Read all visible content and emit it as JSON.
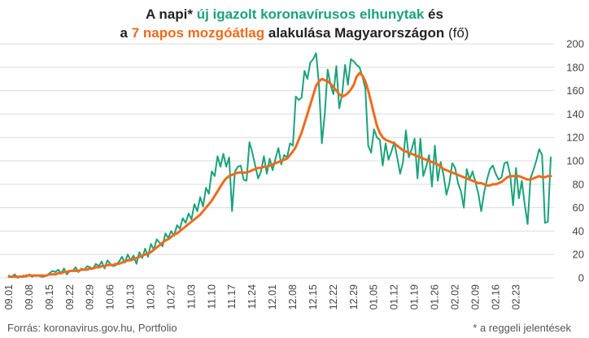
{
  "title": {
    "line1_prefix": "A napi* ",
    "line1_green": "új igazolt koronavírusos elhunytak",
    "line1_suffix": " és",
    "line2_prefix": "a ",
    "line2_orange": "7 napos mozgóátlag",
    "line2_suffix": " alakulása Magyarországon",
    "line2_unit": " (fő)"
  },
  "footer": {
    "source": "Forrás: koronavirus.gov.hu, Portfolio",
    "note": "* a reggeli jelentések"
  },
  "colors": {
    "daily": "#1aa37a",
    "average": "#f26a1b",
    "grid": "#dcdcdc"
  },
  "chart_data": {
    "type": "line",
    "x_start": "2020-09-01",
    "x_end": "2021-02-23",
    "x_tick_labels": [
      "09.01",
      "09.08",
      "09.15",
      "09.22",
      "09.29",
      "10.06",
      "10.13",
      "10.20",
      "10.27",
      "11.03",
      "11.10",
      "11.17",
      "11.24",
      "12.01",
      "12.08",
      "12.15",
      "12.22",
      "12.29",
      "01.05",
      "01.12",
      "01.19",
      "01.26",
      "02.02",
      "02.09",
      "02.16",
      "02.23"
    ],
    "y_ticks": [
      0,
      20,
      40,
      60,
      80,
      100,
      120,
      140,
      160,
      180,
      200
    ],
    "ylim": [
      0,
      200
    ],
    "grid": "horizontal",
    "series": [
      {
        "name": "új igazolt koronavírusos elhunytak",
        "color": "#1aa37a",
        "values": [
          2,
          1,
          3,
          0,
          1,
          2,
          1,
          3,
          1,
          2,
          2,
          1,
          1,
          2,
          4,
          6,
          5,
          7,
          4,
          8,
          3,
          6,
          6,
          9,
          5,
          8,
          7,
          10,
          9,
          8,
          12,
          10,
          14,
          8,
          15,
          12,
          10,
          11,
          14,
          18,
          13,
          20,
          15,
          19,
          12,
          22,
          17,
          25,
          18,
          29,
          24,
          33,
          30,
          27,
          38,
          34,
          40,
          36,
          45,
          42,
          51,
          47,
          55,
          50,
          63,
          57,
          69,
          61,
          77,
          72,
          91,
          87,
          104,
          95,
          106,
          95,
          103,
          57,
          91,
          95,
          96,
          84,
          83,
          116,
          107,
          96,
          85,
          91,
          104,
          89,
          102,
          92,
          102,
          111,
          97,
          105,
          103,
          115,
          113,
          155,
          152,
          154,
          177,
          170,
          184,
          187,
          192,
          165,
          115,
          140,
          178,
          165,
          157,
          181,
          145,
          157,
          182,
          165,
          187,
          185,
          182,
          180,
          172,
          162,
          113,
          107,
          127,
          120,
          118,
          96,
          115,
          101,
          108,
          116,
          103,
          89,
          99,
          126,
          103,
          110,
          119,
          85,
          119,
          87,
          95,
          105,
          78,
          113,
          83,
          99,
          88,
          71,
          81,
          98,
          94,
          81,
          74,
          60,
          93,
          84,
          91,
          82,
          72,
          57,
          73,
          84,
          93,
          96,
          89,
          84,
          86,
          98,
          99,
          88,
          62,
          94,
          68,
          83,
          63,
          46,
          85,
          92,
          100,
          110,
          105,
          47,
          48,
          103
        ],
        "x_index_note": "values are one per day starting at x_start (09.01)"
      },
      {
        "name": "7 napos mozgóátlag",
        "color": "#f26a1b",
        "values": [
          1,
          1,
          1,
          1,
          1,
          1,
          2,
          2,
          2,
          2,
          2,
          2,
          2,
          2,
          3,
          3,
          3,
          4,
          4,
          5,
          5,
          6,
          6,
          6,
          6,
          7,
          7,
          7,
          8,
          8,
          9,
          9,
          10,
          10,
          11,
          11,
          11,
          12,
          12,
          13,
          14,
          15,
          15,
          16,
          17,
          18,
          19,
          20,
          21,
          22,
          24,
          26,
          28,
          30,
          32,
          33,
          35,
          37,
          38,
          40,
          42,
          44,
          46,
          48,
          50,
          52,
          54,
          57,
          60,
          63,
          66,
          70,
          74,
          78,
          82,
          85,
          87,
          88,
          89,
          90,
          90,
          90,
          90,
          91,
          92,
          93,
          94,
          94,
          95,
          95,
          96,
          97,
          98,
          99,
          100,
          101,
          102,
          105,
          108,
          112,
          118,
          124,
          132,
          140,
          148,
          156,
          164,
          168,
          170,
          169,
          168,
          166,
          163,
          160,
          157,
          155,
          156,
          158,
          161,
          165,
          172,
          175,
          173,
          168,
          160,
          150,
          140,
          130,
          124,
          120,
          118,
          117,
          116,
          115,
          113,
          111,
          109,
          108,
          107,
          106,
          105,
          104,
          103,
          102,
          101,
          100,
          99,
          98,
          97,
          95,
          93,
          92,
          91,
          90,
          89,
          88,
          87,
          86,
          85,
          84,
          83,
          82,
          81,
          81,
          80,
          79,
          79,
          80,
          80,
          81,
          82,
          84,
          86,
          87,
          87,
          87,
          87,
          86,
          85,
          84,
          84,
          85,
          86,
          87,
          86,
          86,
          87,
          87
        ]
      }
    ]
  }
}
